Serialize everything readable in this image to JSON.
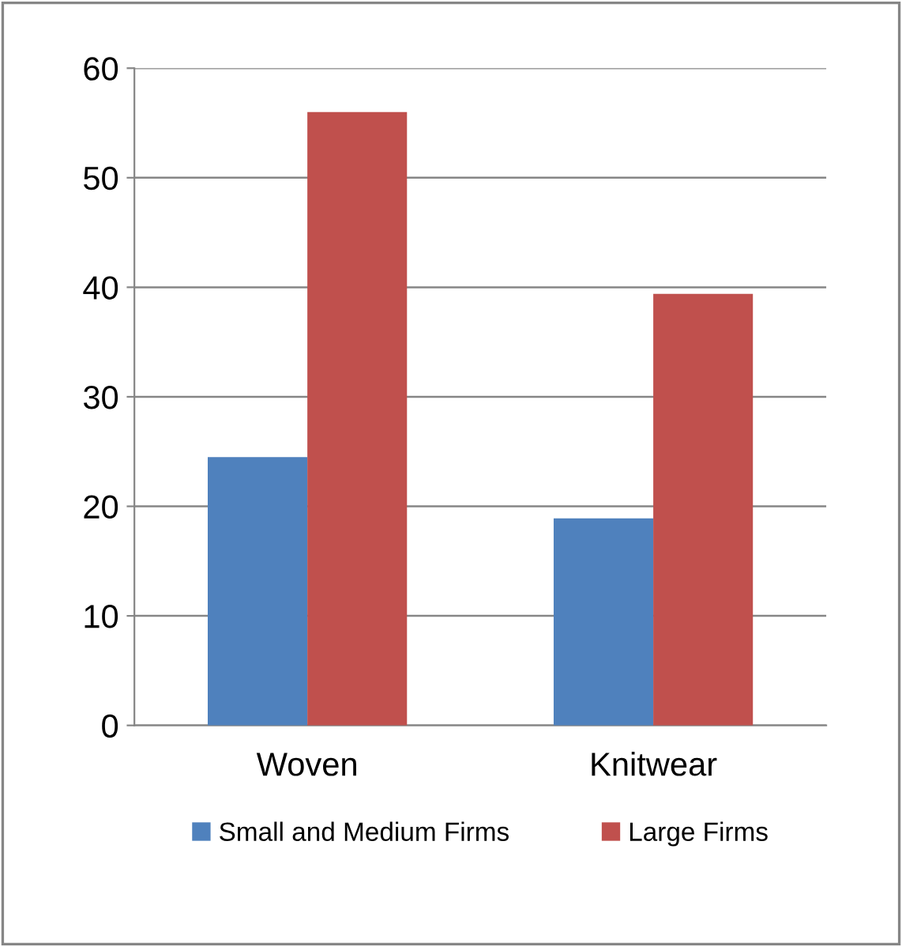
{
  "chart_data": {
    "type": "bar",
    "categories": [
      "Woven",
      "Knitwear"
    ],
    "series": [
      {
        "name": "Small and Medium Firms",
        "color": "#4f81bd",
        "values": [
          24.5,
          18.9
        ]
      },
      {
        "name": "Large Firms",
        "color": "#c0504d",
        "values": [
          56.0,
          39.4
        ]
      }
    ],
    "ylim": [
      0,
      60
    ],
    "yticks": [
      0,
      10,
      20,
      30,
      40,
      50,
      60
    ],
    "grid": "y",
    "legend": "bottom"
  }
}
